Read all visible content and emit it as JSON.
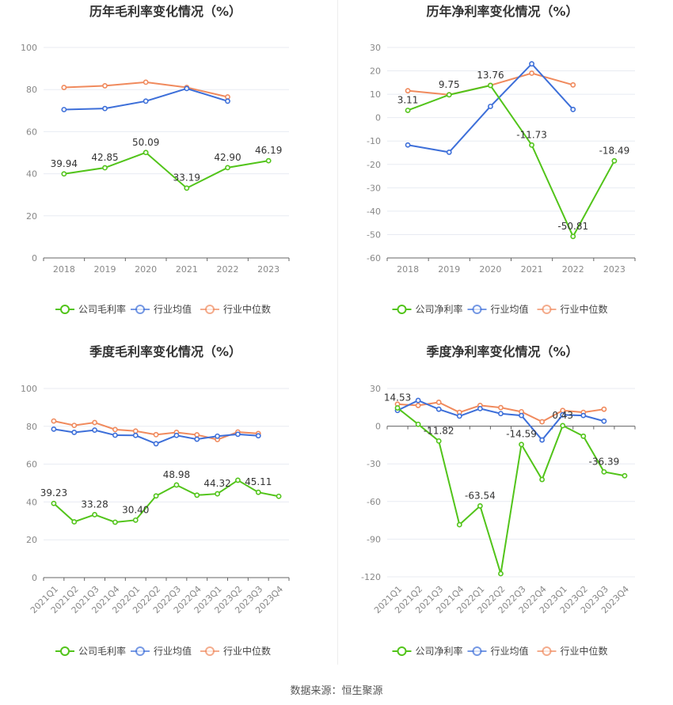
{
  "colors": {
    "company": "#52c41a",
    "industry_avg": "#3d6fd9",
    "industry_median": "#f08a5d",
    "grid": "#e8ebf2",
    "axis_text": "#888888",
    "title": "#333333"
  },
  "footer": {
    "source": "数据来源：恒生聚源"
  },
  "chart_data": [
    {
      "type": "line",
      "title": "历年毛利率变化情况（%）",
      "categories": [
        "2018",
        "2019",
        "2020",
        "2021",
        "2022",
        "2023"
      ],
      "ylim": [
        0,
        100
      ],
      "yticks": [
        0,
        20,
        40,
        60,
        80,
        100
      ],
      "series": [
        {
          "name": "公司毛利率",
          "role": "company",
          "values": [
            39.94,
            42.85,
            50.09,
            33.19,
            42.9,
            46.19
          ],
          "labels": [
            "39.94",
            "42.85",
            "50.09",
            "33.19",
            "42.90",
            "46.19"
          ]
        },
        {
          "name": "行业均值",
          "role": "industry_avg",
          "values": [
            70.5,
            71,
            74.5,
            80.5,
            74.5,
            null
          ]
        },
        {
          "name": "行业中位数",
          "role": "industry_median",
          "values": [
            81,
            81.8,
            83.5,
            81,
            76.5,
            null
          ]
        }
      ],
      "legend": "bottom"
    },
    {
      "type": "line",
      "title": "历年净利率变化情况（%）",
      "categories": [
        "2018",
        "2019",
        "2020",
        "2021",
        "2022",
        "2023"
      ],
      "ylim": [
        -60,
        30
      ],
      "yticks": [
        -60,
        -50,
        -40,
        -30,
        -20,
        -10,
        0,
        10,
        20,
        30
      ],
      "series": [
        {
          "name": "公司净利率",
          "role": "company",
          "values": [
            3.11,
            9.75,
            13.76,
            -11.73,
            -50.81,
            -18.49
          ],
          "labels": [
            "3.11",
            "9.75",
            "13.76",
            "-11.73",
            "-50.81",
            "-18.49"
          ]
        },
        {
          "name": "行业均值",
          "role": "industry_avg",
          "values": [
            -11.7,
            -14.8,
            4.8,
            23,
            3.5,
            null
          ]
        },
        {
          "name": "行业中位数",
          "role": "industry_median",
          "values": [
            11.5,
            9.8,
            13.8,
            19,
            14,
            null
          ]
        }
      ],
      "legend": "bottom"
    },
    {
      "type": "line",
      "title": "季度毛利率变化情况（%）",
      "categories": [
        "2021Q1",
        "2021Q2",
        "2021Q3",
        "2021Q4",
        "2022Q1",
        "2022Q2",
        "2022Q3",
        "2022Q4",
        "2023Q1",
        "2023Q2",
        "2023Q3",
        "2023Q4"
      ],
      "ylim": [
        0,
        100
      ],
      "yticks": [
        0,
        20,
        40,
        60,
        80,
        100
      ],
      "series": [
        {
          "name": "公司毛利率",
          "role": "company",
          "values": [
            39.23,
            29.5,
            33.28,
            29.3,
            30.4,
            43.2,
            48.98,
            43.6,
            44.32,
            51.5,
            45.11,
            43
          ],
          "labels": [
            "39.23",
            "",
            "33.28",
            "",
            "30.40",
            "",
            "48.98",
            "",
            "44.32",
            "",
            "45.11",
            ""
          ]
        },
        {
          "name": "行业均值",
          "role": "industry_avg",
          "values": [
            78.5,
            76.8,
            78,
            75.3,
            75.2,
            70.8,
            75.2,
            73.2,
            74.8,
            75.8,
            75,
            null
          ]
        },
        {
          "name": "行业中位数",
          "role": "industry_median",
          "values": [
            82.8,
            80.5,
            82,
            78.3,
            77.5,
            75.6,
            76.8,
            75.5,
            73,
            77,
            76.2,
            null
          ]
        }
      ],
      "legend": "bottom"
    },
    {
      "type": "line",
      "title": "季度净利率变化情况（%）",
      "categories": [
        "2021Q1",
        "2021Q2",
        "2021Q3",
        "2021Q4",
        "2022Q1",
        "2022Q2",
        "2022Q3",
        "2022Q4",
        "2023Q1",
        "2023Q2",
        "2023Q3",
        "2023Q4"
      ],
      "ylim": [
        -120,
        30
      ],
      "yticks": [
        -120,
        -90,
        -60,
        -30,
        0,
        30
      ],
      "series": [
        {
          "name": "公司净利率",
          "role": "company",
          "values": [
            14.53,
            1.5,
            -11.82,
            -78.5,
            -63.54,
            -117.5,
            -14.59,
            -42.5,
            0.43,
            -8,
            -36.39,
            -39.5
          ],
          "labels": [
            "14.53",
            "",
            "-11.82",
            "",
            "-63.54",
            "",
            "-14.59",
            "",
            "0.43",
            "",
            "-36.39",
            ""
          ]
        },
        {
          "name": "行业均值",
          "role": "industry_avg",
          "values": [
            12.5,
            20.5,
            13.5,
            8,
            14,
            10,
            8.5,
            -11,
            9,
            8.5,
            4,
            null
          ]
        },
        {
          "name": "行业中位数",
          "role": "industry_median",
          "values": [
            17.5,
            16.5,
            19,
            11,
            16.5,
            14.8,
            11.5,
            3.5,
            12.5,
            11,
            13.5,
            null
          ]
        }
      ],
      "legend": "bottom"
    }
  ]
}
